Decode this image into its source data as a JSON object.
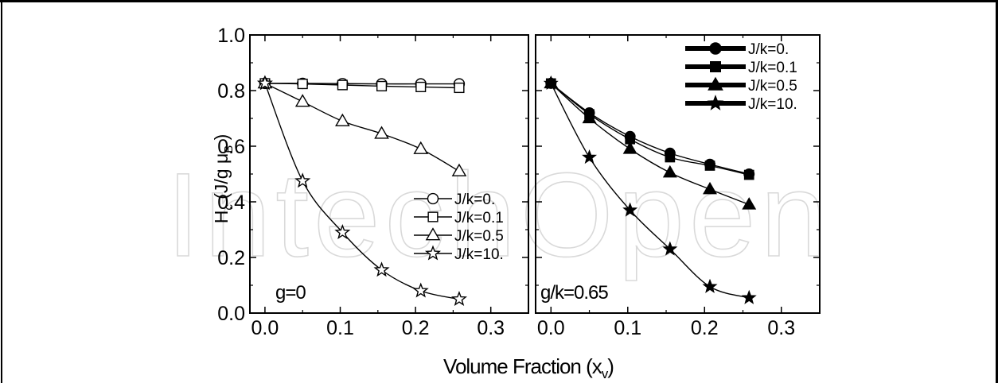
{
  "watermark": "IntechOpen",
  "figure": {
    "ylabel": "H",
    "ylabel_sub": "c",
    "ylabel_rest": " (J/g μ",
    "ylabel_sub2": "B",
    "ylabel_end": " )",
    "xlabel": "Volume Fraction (x",
    "xlabel_sub": "v",
    "xlabel_end": ")"
  },
  "chart_data": [
    {
      "type": "line",
      "panel_label": "g=0",
      "xlim": [
        -0.02,
        0.35
      ],
      "ylim": [
        0.0,
        1.0
      ],
      "x_ticks": [
        "0.0",
        "0.1",
        "0.2",
        "0.3"
      ],
      "y_ticks": [
        "0.0",
        "0.2",
        "0.4",
        "0.6",
        "0.8",
        "1.0"
      ],
      "legend_position": "lower-right",
      "marker_fill": "open",
      "x": [
        0.0,
        0.05,
        0.103,
        0.155,
        0.207,
        0.258
      ],
      "series": [
        {
          "name": "J/k=0.",
          "marker": "circle",
          "values": [
            0.826,
            0.826,
            0.825,
            0.824,
            0.824,
            0.824
          ]
        },
        {
          "name": "J/k=0.1",
          "marker": "square",
          "values": [
            0.826,
            0.824,
            0.82,
            0.816,
            0.813,
            0.81
          ]
        },
        {
          "name": "J/k=0.5",
          "marker": "triangle",
          "values": [
            0.826,
            0.76,
            0.69,
            0.645,
            0.59,
            0.51
          ]
        },
        {
          "name": "J/k=10.",
          "marker": "star",
          "values": [
            0.826,
            0.475,
            0.29,
            0.155,
            0.08,
            0.05
          ]
        }
      ]
    },
    {
      "type": "line",
      "panel_label": "g/k=0.65",
      "xlim": [
        -0.02,
        0.35
      ],
      "ylim": [
        0.0,
        1.0
      ],
      "x_ticks": [
        "0.0",
        "0.1",
        "0.2",
        "0.3"
      ],
      "legend_position": "top-right",
      "marker_fill": "filled",
      "x": [
        0.0,
        0.05,
        0.103,
        0.155,
        0.207,
        0.258
      ],
      "series": [
        {
          "name": "J/k=0.",
          "marker": "circle",
          "values": [
            0.826,
            0.72,
            0.635,
            0.575,
            0.535,
            0.5
          ]
        },
        {
          "name": "J/k=0.1",
          "marker": "square",
          "values": [
            0.826,
            0.715,
            0.625,
            0.56,
            0.53,
            0.497
          ]
        },
        {
          "name": "J/k=0.5",
          "marker": "triangle",
          "values": [
            0.826,
            0.7,
            0.59,
            0.505,
            0.445,
            0.39
          ]
        },
        {
          "name": "J/k=10.",
          "marker": "star",
          "values": [
            0.826,
            0.56,
            0.37,
            0.23,
            0.095,
            0.055
          ]
        }
      ]
    }
  ]
}
